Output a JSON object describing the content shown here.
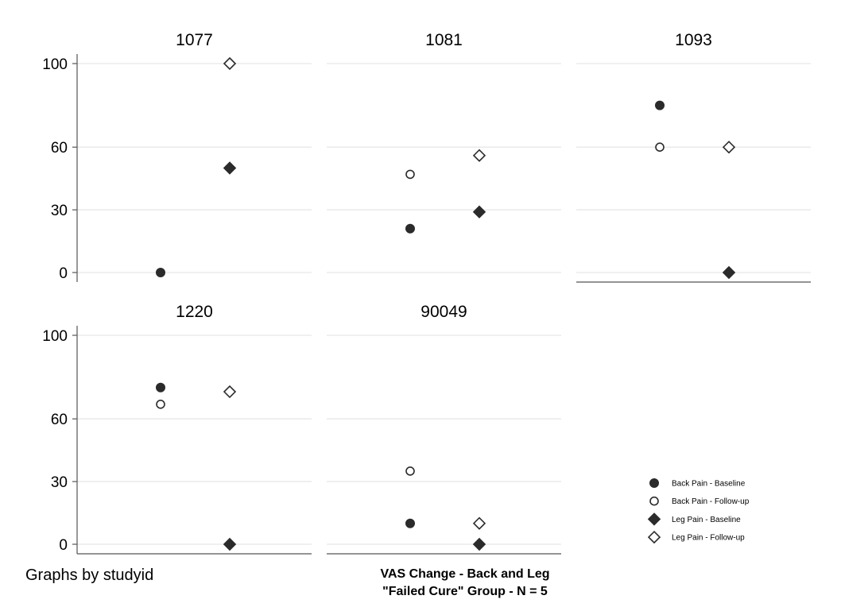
{
  "chart_data": {
    "type": "scatter",
    "panel_variable": "studyid",
    "ylim": [
      0,
      100
    ],
    "yticks": [
      0,
      30,
      60,
      100
    ],
    "grid": true,
    "legend_position": "bottom-right",
    "series": [
      {
        "name": "Back Pain - Baseline",
        "marker": "filled-circle",
        "column": 1
      },
      {
        "name": "Back Pain - Follow-up",
        "marker": "hollow-circle",
        "column": 1
      },
      {
        "name": "Leg Pain - Baseline",
        "marker": "filled-diamond",
        "column": 2
      },
      {
        "name": "Leg Pain - Follow-up",
        "marker": "hollow-diamond",
        "column": 2
      }
    ],
    "panels": [
      {
        "title": "1077",
        "values": [
          0,
          null,
          50,
          100
        ]
      },
      {
        "title": "1081",
        "values": [
          21,
          47,
          29,
          56
        ]
      },
      {
        "title": "1093",
        "values": [
          80,
          60,
          0,
          60
        ]
      },
      {
        "title": "1220",
        "values": [
          75,
          67,
          0,
          73
        ]
      },
      {
        "title": "90049",
        "values": [
          10,
          35,
          0,
          10
        ]
      }
    ]
  },
  "note": "Graphs by studyid",
  "caption": [
    "VAS Change - Back and Leg",
    "\"Failed Cure\" Group - N = 5"
  ],
  "colors": {
    "marker": "#2b2b2b",
    "grid": "#ebebeb",
    "axis": "#555555"
  }
}
